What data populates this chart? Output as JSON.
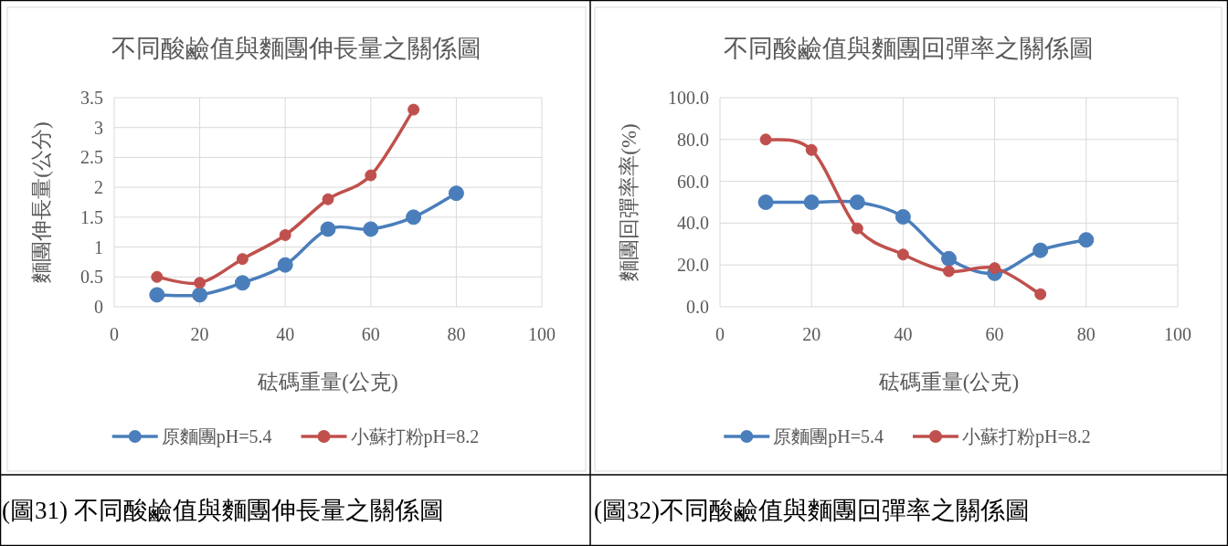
{
  "chart_data": [
    {
      "type": "line",
      "title": "不同酸鹼值與麵團伸長量之關係圖",
      "xlabel": "砝碼重量(公克)",
      "ylabel": "麵團伸長量(公分)",
      "xlim": [
        0,
        100
      ],
      "xticks": [
        0,
        20,
        40,
        60,
        80,
        100
      ],
      "ylim": [
        0,
        3.5
      ],
      "yticks": [
        0,
        0.5,
        1,
        1.5,
        2,
        2.5,
        3,
        3.5
      ],
      "grid": true,
      "legend": "bottom",
      "marker": "circle",
      "line_style": "solid",
      "series": [
        {
          "name": "原麵團pH=5.4",
          "color": "#4a7ebb",
          "x": [
            10,
            20,
            30,
            40,
            50,
            60,
            70,
            80
          ],
          "values": [
            0.2,
            0.2,
            0.4,
            0.7,
            1.3,
            1.3,
            1.5,
            1.9
          ]
        },
        {
          "name": "小蘇打粉pH=8.2",
          "color": "#c0504d",
          "x": [
            10,
            20,
            30,
            40,
            50,
            60,
            70
          ],
          "values": [
            0.5,
            0.4,
            0.8,
            1.2,
            1.8,
            2.2,
            3.3
          ]
        }
      ],
      "annotations": [
        "(圖31) 不同酸鹼值與麵團伸長量之關係圖"
      ]
    },
    {
      "type": "line",
      "title": "不同酸鹼值與麵團回彈率之關係圖",
      "xlabel": "砝碼重量(公克)",
      "ylabel": "麵團回彈率率(%)",
      "xlim": [
        0,
        100
      ],
      "xticks": [
        0,
        20,
        40,
        60,
        80,
        100
      ],
      "ylim": [
        0,
        100
      ],
      "yticks": [
        {
          "value": 0,
          "label": "0.0"
        },
        {
          "value": 20,
          "label": "20.0"
        },
        {
          "value": 40,
          "label": "40.0"
        },
        {
          "value": 60,
          "label": "60.0"
        },
        {
          "value": 80,
          "label": "80.0"
        },
        {
          "value": 100,
          "label": "100.0"
        }
      ],
      "grid": true,
      "legend": "bottom",
      "marker": "circle",
      "line_style": "solid",
      "series": [
        {
          "name": "原麵團pH=5.4",
          "color": "#4a7ebb",
          "x": [
            10,
            20,
            30,
            40,
            50,
            60,
            70,
            80
          ],
          "values": [
            50,
            50,
            50,
            43,
            23,
            16,
            27,
            32
          ]
        },
        {
          "name": "小蘇打粉pH=8.2",
          "color": "#c0504d",
          "x": [
            10,
            20,
            30,
            40,
            50,
            60,
            70
          ],
          "values": [
            80,
            75,
            37.5,
            25,
            17,
            18.5,
            6
          ]
        }
      ],
      "annotations": [
        "(圖32)不同酸鹼值與麵團回彈率之關係圖"
      ]
    }
  ]
}
